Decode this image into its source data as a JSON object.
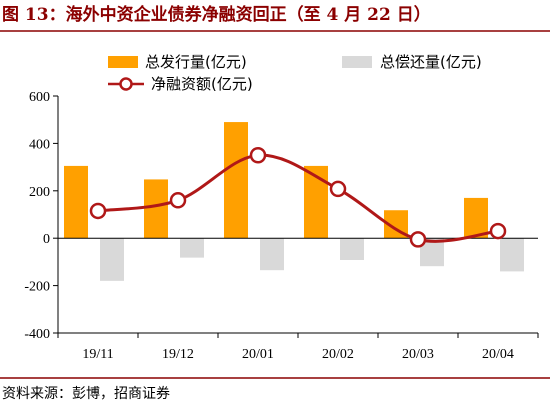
{
  "title": "图 13：海外中资企业债券净融资回正（至 4 月 22 日）",
  "source": "资料来源：彭博，招商证券",
  "colors": {
    "issuance": "#FFA000",
    "repayment": "#D9D9D9",
    "net": "#B01818",
    "title": "#8B0000",
    "rule": "#8B0000"
  },
  "chart_data": {
    "type": "bar",
    "categories": [
      "19/11",
      "19/12",
      "20/01",
      "20/02",
      "20/03",
      "20/04"
    ],
    "series": [
      {
        "name": "总发行量(亿元)",
        "type": "bar",
        "values": [
          305,
          248,
          490,
          305,
          118,
          170
        ]
      },
      {
        "name": "总偿还量(亿元)",
        "type": "bar",
        "values": [
          -180,
          -82,
          -135,
          -92,
          -118,
          -140
        ]
      },
      {
        "name": "净融资额(亿元)",
        "type": "line",
        "smooth": true,
        "marker": "circle",
        "values": [
          115,
          160,
          350,
          208,
          -5,
          30
        ]
      }
    ],
    "ylim": [
      -400,
      600
    ],
    "yticks": [
      "600",
      "400",
      "200",
      "0",
      "-200",
      "-400"
    ],
    "xlabel": "",
    "ylabel": "",
    "grid": false,
    "legend_position": "top"
  }
}
